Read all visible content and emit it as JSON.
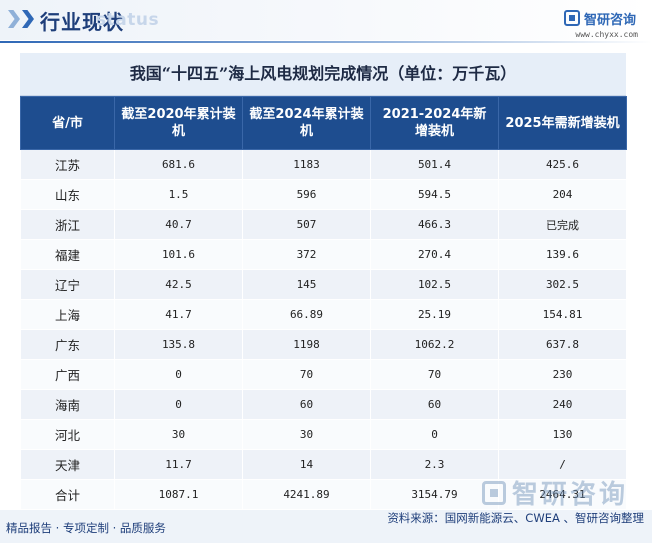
{
  "header": {
    "title": "行业现状",
    "ghost_text": "status",
    "brand_name": "智研咨询",
    "brand_url": "www.chyxx.com"
  },
  "table": {
    "caption": "我国“十四五”海上风电规划完成情况（单位：万千瓦）",
    "columns": [
      "省/市",
      "截至2020年累计装机",
      "截至2024年累计装机",
      "2021-2024年新增装机",
      "2025年需新增装机"
    ],
    "rows": [
      [
        "江苏",
        "681.6",
        "1183",
        "501.4",
        "425.6"
      ],
      [
        "山东",
        "1.5",
        "596",
        "594.5",
        "204"
      ],
      [
        "浙江",
        "40.7",
        "507",
        "466.3",
        "已完成"
      ],
      [
        "福建",
        "101.6",
        "372",
        "270.4",
        "139.6"
      ],
      [
        "辽宁",
        "42.5",
        "145",
        "102.5",
        "302.5"
      ],
      [
        "上海",
        "41.7",
        "66.89",
        "25.19",
        "154.81"
      ],
      [
        "广东",
        "135.8",
        "1198",
        "1062.2",
        "637.8"
      ],
      [
        "广西",
        "0",
        "70",
        "70",
        "230"
      ],
      [
        "海南",
        "0",
        "60",
        "60",
        "240"
      ],
      [
        "河北",
        "30",
        "30",
        "0",
        "130"
      ],
      [
        "天津",
        "11.7",
        "14",
        "2.3",
        "/"
      ],
      [
        "合计",
        "1087.1",
        "4241.89",
        "3154.79",
        "2464.31"
      ]
    ]
  },
  "footer": {
    "tagline": "精品报告 · 专项定制 · 品质服务",
    "source": "资料来源：国网新能源云、CWEA 、智研咨询整理",
    "watermark": "智研咨询"
  },
  "colors": {
    "header_navy": "#1e4d8f",
    "title_blue": "#1e3e7a",
    "brand_blue": "#2f68b6"
  }
}
